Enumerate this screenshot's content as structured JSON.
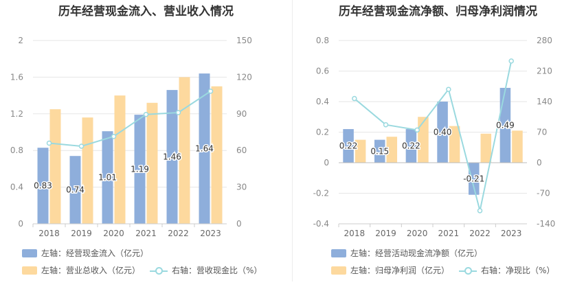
{
  "chart_data": [
    {
      "type": "bar",
      "title": "历年经营现金流入、营业收入情况",
      "categories": [
        "2018",
        "2019",
        "2020",
        "2021",
        "2022",
        "2023"
      ],
      "left_axis": {
        "min": 0,
        "max": 2,
        "ticks": [
          "0",
          "0.4",
          "0.8",
          "1.2",
          "1.6",
          "2"
        ]
      },
      "right_axis": {
        "min": 0,
        "max": 150,
        "ticks": [
          "0",
          "30",
          "60",
          "90",
          "120",
          "150"
        ]
      },
      "series": [
        {
          "name": "左轴：经营现金流入（亿元）",
          "axis": "left",
          "kind": "bar",
          "color": "#8eaedb",
          "values": [
            0.83,
            0.74,
            1.01,
            1.19,
            1.46,
            1.64
          ],
          "labels": [
            "0.83",
            "0.74",
            "1.01",
            "1.19",
            "1.46",
            "1.64"
          ]
        },
        {
          "name": "左轴：营业总收入（亿元）",
          "axis": "left",
          "kind": "bar",
          "color": "#fdd99e",
          "values": [
            1.25,
            1.16,
            1.4,
            1.32,
            1.6,
            1.5
          ]
        },
        {
          "name": "右轴：营收现金比（%）",
          "axis": "right",
          "kind": "line",
          "color": "#9ad9df",
          "values": [
            66,
            63.5,
            71.5,
            89.5,
            91,
            108.5
          ]
        }
      ],
      "legend_position": "bottom"
    },
    {
      "type": "bar",
      "title": "历年经营现金流净额、归母净利润情况",
      "categories": [
        "2018",
        "2019",
        "2020",
        "2021",
        "2022",
        "2023"
      ],
      "left_axis": {
        "min": -0.4,
        "max": 0.8,
        "ticks": [
          "-0.4",
          "-0.2",
          "0",
          "0.2",
          "0.4",
          "0.6",
          "0.8"
        ]
      },
      "right_axis": {
        "min": -140,
        "max": 280,
        "ticks": [
          "-140",
          "-70",
          "0",
          "70",
          "140",
          "210",
          "280"
        ]
      },
      "series": [
        {
          "name": "左轴：经营活动现金流净额（亿元）",
          "axis": "left",
          "kind": "bar",
          "color": "#8eaedb",
          "values": [
            0.22,
            0.15,
            0.22,
            0.4,
            -0.21,
            0.49
          ],
          "labels": [
            "0.22",
            "0.15",
            "0.22",
            "0.40",
            "-0.21",
            "0.49"
          ]
        },
        {
          "name": "左轴：归母净利润（亿元）",
          "axis": "left",
          "kind": "bar",
          "color": "#fdd99e",
          "values": [
            0.15,
            0.17,
            0.3,
            0.24,
            0.19,
            0.21
          ]
        },
        {
          "name": "右轴：净现比（%）",
          "axis": "right",
          "kind": "line",
          "color": "#9ad9df",
          "values": [
            147,
            87,
            75,
            168,
            -110,
            233
          ]
        }
      ],
      "legend_position": "bottom"
    }
  ]
}
